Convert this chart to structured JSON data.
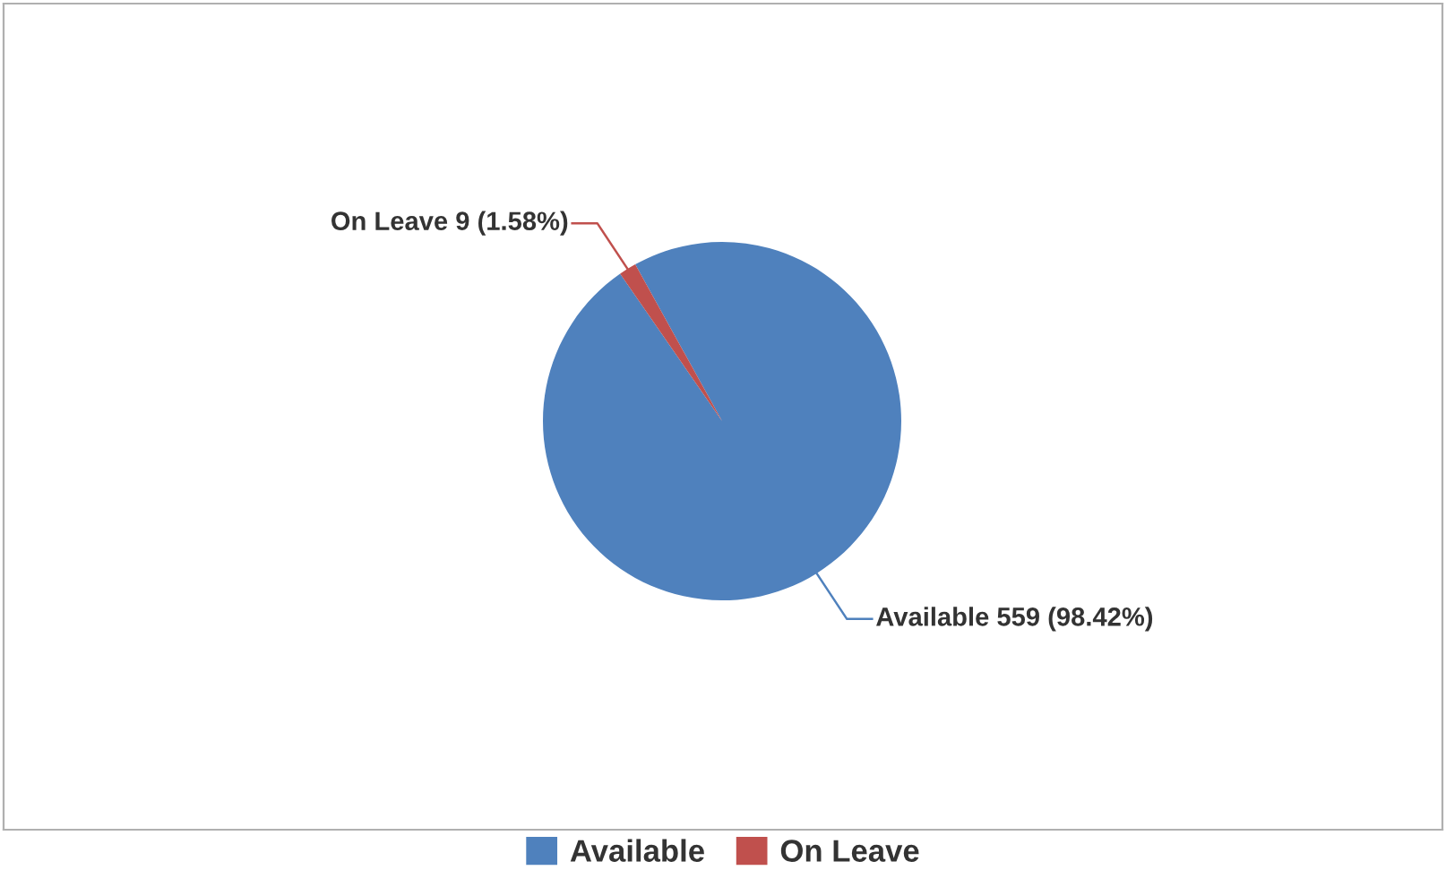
{
  "chart_data": {
    "type": "pie",
    "categories": [
      "Available",
      "On Leave"
    ],
    "values": [
      559,
      9
    ],
    "colors": [
      "#4f81bd",
      "#c0504d"
    ],
    "value_labels": [
      "Available 559 (98.42%)",
      "On Leave 9 (1.58%)"
    ],
    "legend": "bottom"
  }
}
